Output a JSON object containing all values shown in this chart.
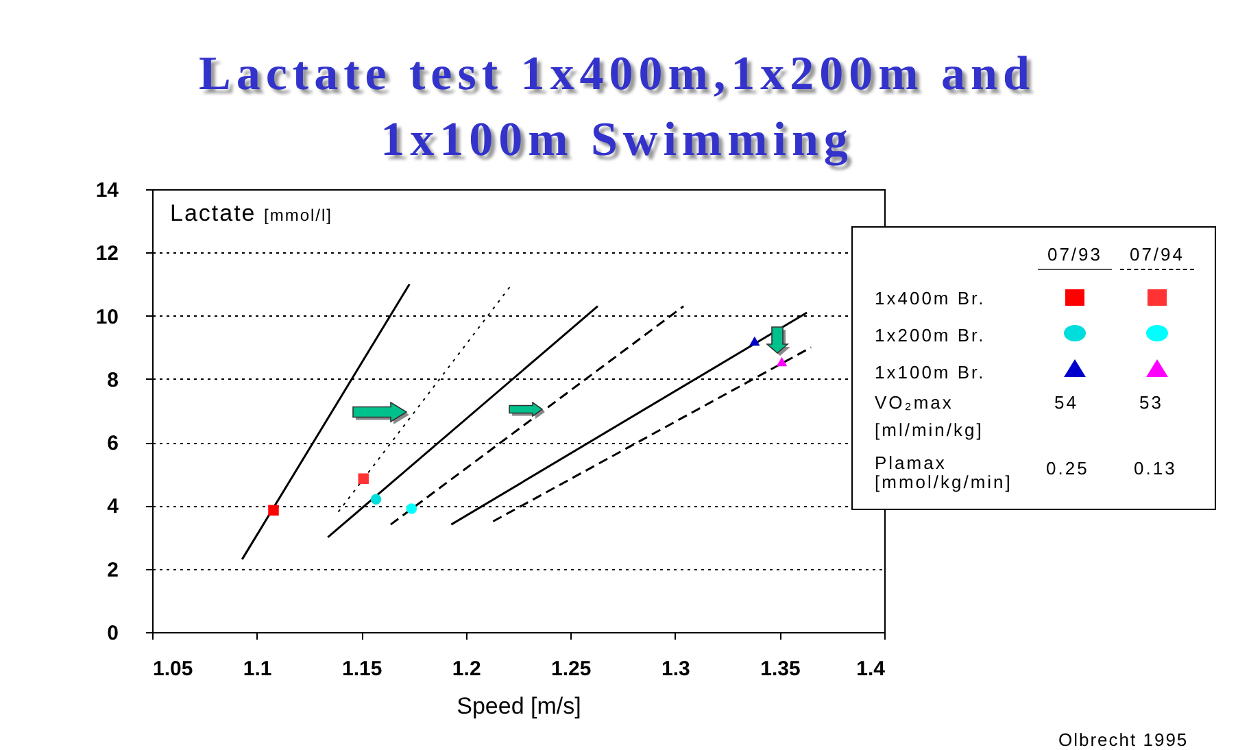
{
  "chart_data": {
    "type": "line",
    "title": "Lactate test 1x400m,1x200m and 1x100m Swimming",
    "xlabel": "Speed [m/s]",
    "ylabel": "Lactate [mmol/l]",
    "xlim": [
      1.05,
      1.4
    ],
    "xticks": [
      1.05,
      1.1,
      1.15,
      1.2,
      1.25,
      1.3,
      1.35,
      1.4
    ],
    "ylim": [
      0,
      14
    ],
    "yticks": [
      0,
      2,
      4,
      6,
      8,
      10,
      12,
      14
    ],
    "grid": "y",
    "series": [
      {
        "color": "#000000",
        "line_style": "solid",
        "x": [
          1.093,
          1.173
        ],
        "values": [
          2.3,
          11.0
        ]
      },
      {
        "color": "#000000",
        "line_style": "dotted",
        "x": [
          1.139,
          1.222
        ],
        "values": [
          3.8,
          11.0
        ]
      },
      {
        "color": "#000000",
        "line_style": "solid",
        "x": [
          1.134,
          1.263
        ],
        "values": [
          3.0,
          10.3
        ]
      },
      {
        "color": "#000000",
        "line_style": "dashed",
        "x": [
          1.164,
          1.304
        ],
        "values": [
          3.4,
          10.3
        ]
      },
      {
        "color": "#000000",
        "line_style": "solid",
        "x": [
          1.193,
          1.363
        ],
        "values": [
          3.4,
          10.1
        ]
      },
      {
        "color": "#000000",
        "line_style": "dashed",
        "x": [
          1.213,
          1.365
        ],
        "values": [
          3.5,
          9.0
        ]
      },
      {
        "type": "scatter",
        "color": "#ff0000",
        "marker": "square",
        "x": [
          1.108
        ],
        "values": [
          3.85
        ]
      },
      {
        "type": "scatter",
        "color": "#ff3333",
        "marker": "square",
        "x": [
          1.151
        ],
        "values": [
          4.85
        ]
      },
      {
        "type": "scatter",
        "color": "#00dddd",
        "marker": "circle",
        "x": [
          1.157
        ],
        "values": [
          4.2
        ]
      },
      {
        "type": "scatter",
        "color": "#00ffff",
        "marker": "circle",
        "x": [
          1.174
        ],
        "values": [
          3.9
        ]
      },
      {
        "type": "scatter",
        "color": "#0000cc",
        "marker": "triangle",
        "x": [
          1.338
        ],
        "values": [
          9.2
        ]
      },
      {
        "type": "scatter",
        "color": "#ff00ff",
        "marker": "triangle",
        "x": [
          1.351
        ],
        "values": [
          8.55
        ]
      }
    ],
    "annotations": [
      "07/93",
      "07/94",
      "1x400m Br.",
      "1x200m Br.",
      "1x100m Br.",
      "VO₂max",
      "[ml/min/kg]",
      "54",
      "53",
      "Plamax",
      "[mmol/kg/min]",
      "0.25",
      "0.13",
      "Olbrecht 1995"
    ]
  }
}
